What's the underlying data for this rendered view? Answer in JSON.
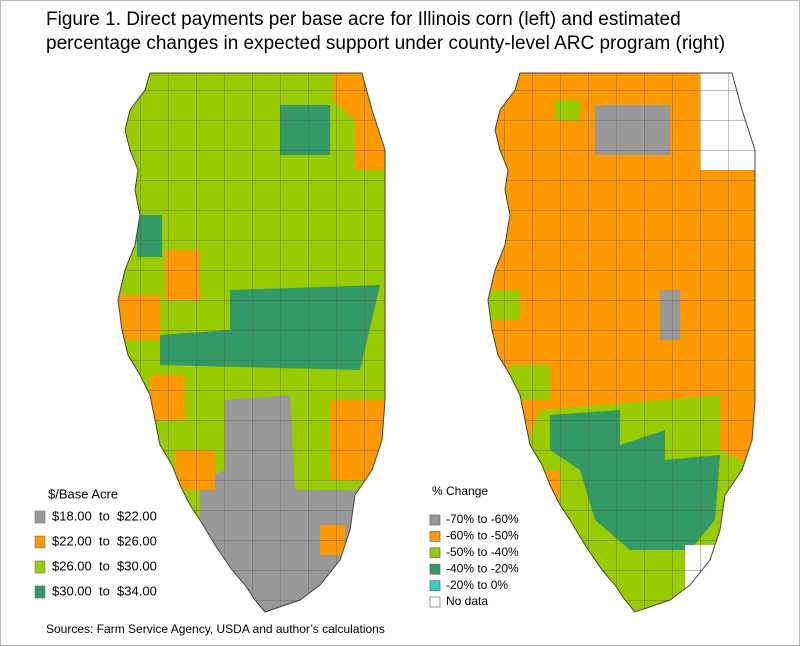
{
  "title": "Figure 1. Direct payments per base acre for Illinois corn (left) and estimated percentage changes in expected support under county-level ARC program (right)",
  "left_legend": {
    "title": "$/Base Acre",
    "items": [
      {
        "label": "$18.00  to  $22.00",
        "color": "#999999"
      },
      {
        "label": "$22.00  to  $26.00",
        "color": "#ff9900"
      },
      {
        "label": "$26.00  to  $30.00",
        "color": "#99cc00"
      },
      {
        "label": "$30.00  to  $34.00",
        "color": "#339966"
      }
    ]
  },
  "right_legend": {
    "title": "% Change",
    "items": [
      {
        "label": "-70% to -60%",
        "color": "#999999"
      },
      {
        "label": "-60% to -50%",
        "color": "#ff9900"
      },
      {
        "label": "-50% to -40%",
        "color": "#99cc00"
      },
      {
        "label": "-40% to -20%",
        "color": "#339966"
      },
      {
        "label": "-20% to 0%",
        "color": "#33cccc"
      },
      {
        "label": "No data",
        "color": "#ffffff"
      }
    ]
  },
  "source": "Sources: Farm Service Agency, USDA and author’s calculations"
}
